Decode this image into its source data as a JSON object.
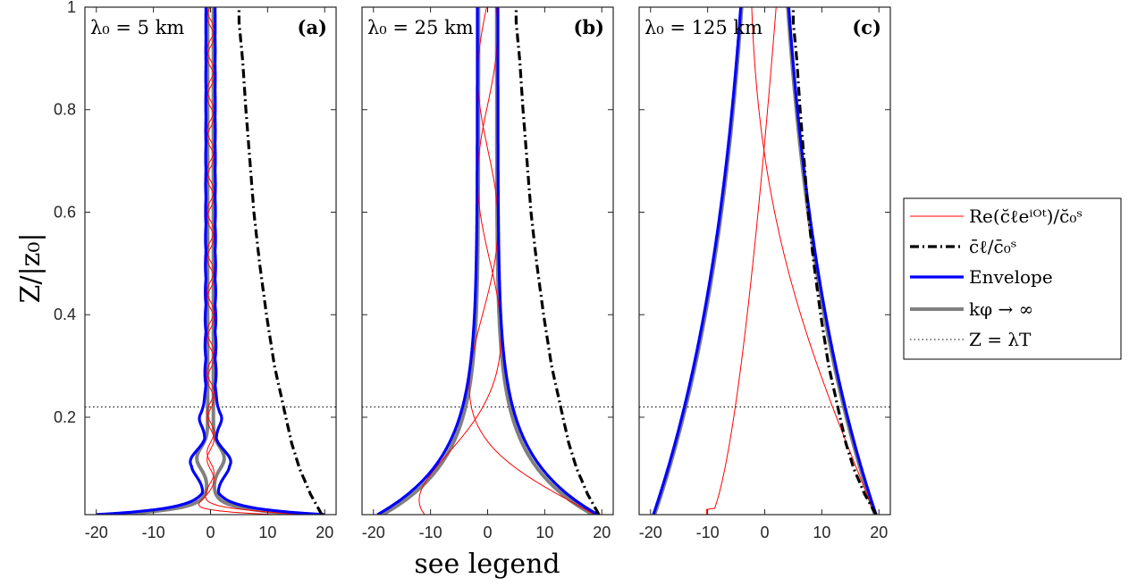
{
  "chart_data": {
    "type": "line",
    "xlabel": "see legend",
    "ylabel": "Z/|z₀|",
    "ylim": [
      0.01,
      1
    ],
    "xlim": [
      -22,
      22
    ],
    "xticks": [
      "-20",
      "-10",
      "0",
      "10",
      "20"
    ],
    "yticks": [
      "0.2",
      "0.4",
      "0.6",
      "0.8",
      "1"
    ],
    "grid": false,
    "legend_position": "right",
    "lambda_T_line": 0.22,
    "legend": [
      {
        "label": "Re(c̆ℓeⁱᴼᵗ)/c̆₀ˢ",
        "color": "#ff0000",
        "style": "thin-solid"
      },
      {
        "label": "c̄ℓ/c̄₀ˢ",
        "color": "#000000",
        "style": "dash-dot"
      },
      {
        "label": "Envelope",
        "color": "#0000ff",
        "style": "thick-solid"
      },
      {
        "label": "kφ → ∞",
        "color": "#808080",
        "style": "thick-solid"
      },
      {
        "label": "Z = λT",
        "color": "#000000",
        "style": "dotted"
      }
    ],
    "panels": [
      {
        "tag": "(a)",
        "note": "λ₀ = 5 km"
      },
      {
        "tag": "(b)",
        "note": "λ₀ = 25 km"
      },
      {
        "tag": "(c)",
        "note": "λ₀ = 125 km"
      }
    ],
    "mean_curve": {
      "z": [
        0.01,
        0.05,
        0.1,
        0.15,
        0.2,
        0.25,
        0.3,
        0.4,
        0.5,
        0.6,
        0.7,
        0.8,
        0.9,
        0.97
      ],
      "x": [
        19.5,
        17.5,
        15.6,
        14.2,
        13.2,
        12.2,
        11.2,
        9.8,
        8.6,
        7.6,
        6.9,
        6.2,
        5.6,
        5.0
      ]
    }
  }
}
